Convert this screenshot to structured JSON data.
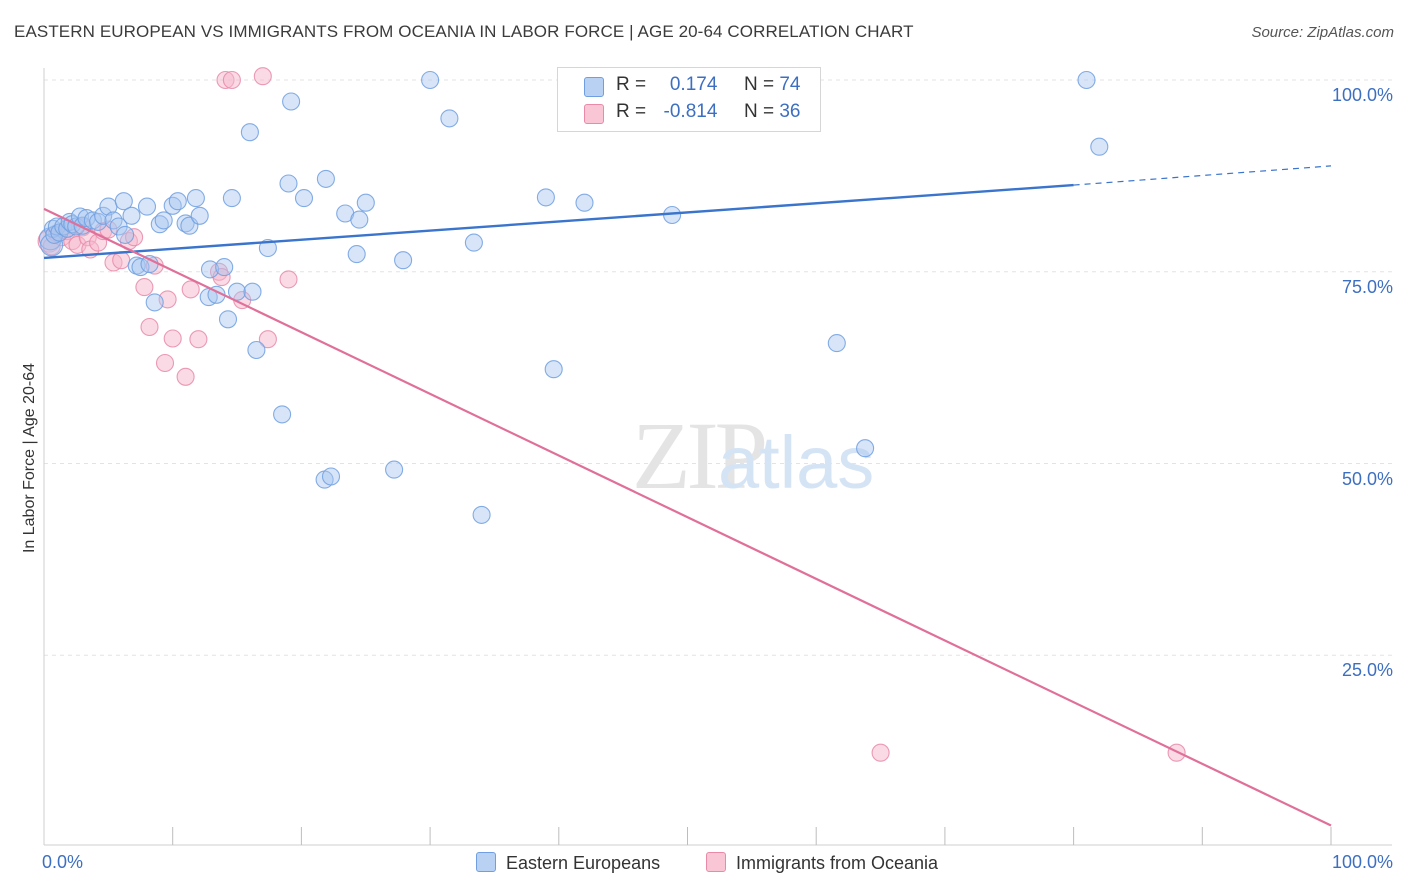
{
  "title": "EASTERN EUROPEAN VS IMMIGRANTS FROM OCEANIA IN LABOR FORCE | AGE 20-64 CORRELATION CHART",
  "source": "Source: ZipAtlas.com",
  "watermark": {
    "zip": "ZIP",
    "atlas": "atlas"
  },
  "legend": {
    "r_label": "R =",
    "n_label": "N =",
    "series1": {
      "r": "0.174",
      "n": "74"
    },
    "series2": {
      "r": "-0.814",
      "n": "36"
    }
  },
  "chart_data": {
    "type": "scatter",
    "title": "EASTERN EUROPEAN VS IMMIGRANTS FROM OCEANIA IN LABOR FORCE | AGE 20-64 CORRELATION CHART",
    "xlabel": "",
    "ylabel": "In Labor Force | Age 20-64",
    "xlim": [
      0,
      100
    ],
    "ylim": [
      0,
      100
    ],
    "x_tick_labels": [
      "0.0%",
      "100.0%"
    ],
    "y_ticks": [
      {
        "value": 100,
        "label": "100.0%"
      },
      {
        "value": 75,
        "label": "75.0%"
      },
      {
        "value": 50,
        "label": "50.0%"
      },
      {
        "value": 25,
        "label": "25.0%"
      }
    ],
    "grid": true,
    "legend_position": "top-center",
    "series": [
      {
        "name": "Eastern Europeans",
        "color": "#6f9fe0",
        "fill": "#a9c6f0",
        "r": 0.174,
        "n": 74,
        "trend": {
          "x0": 0,
          "y0": 76.8,
          "x1": 80,
          "y1": 86.3,
          "dashed_to_x": 100,
          "dashed_to_y": 88.8
        },
        "points": [
          [
            0.5,
            79.3
          ],
          [
            0.6,
            78.5
          ],
          [
            0.7,
            80.6
          ],
          [
            0.8,
            79.8
          ],
          [
            1.0,
            80.9
          ],
          [
            1.2,
            80.1
          ],
          [
            1.5,
            80.9
          ],
          [
            1.8,
            80.6
          ],
          [
            2.0,
            81.5
          ],
          [
            2.2,
            81.2
          ],
          [
            2.5,
            80.9
          ],
          [
            2.8,
            82.2
          ],
          [
            3.0,
            81.0
          ],
          [
            3.3,
            82.0
          ],
          [
            3.8,
            81.7
          ],
          [
            4.2,
            81.5
          ],
          [
            4.6,
            82.3
          ],
          [
            5.0,
            83.5
          ],
          [
            5.4,
            81.7
          ],
          [
            5.8,
            80.9
          ],
          [
            6.2,
            84.2
          ],
          [
            6.3,
            79.8
          ],
          [
            6.8,
            82.3
          ],
          [
            7.2,
            75.8
          ],
          [
            7.5,
            75.6
          ],
          [
            8.0,
            83.5
          ],
          [
            8.2,
            76.0
          ],
          [
            8.6,
            71.0
          ],
          [
            9.0,
            81.2
          ],
          [
            9.3,
            81.7
          ],
          [
            10.0,
            83.6
          ],
          [
            10.4,
            84.2
          ],
          [
            11.0,
            81.3
          ],
          [
            11.3,
            81.0
          ],
          [
            11.8,
            84.6
          ],
          [
            12.1,
            82.3
          ],
          [
            12.8,
            71.7
          ],
          [
            12.9,
            75.3
          ],
          [
            13.4,
            72.0
          ],
          [
            14.0,
            75.6
          ],
          [
            14.3,
            68.8
          ],
          [
            14.6,
            84.6
          ],
          [
            15.0,
            72.4
          ],
          [
            16.0,
            93.2
          ],
          [
            16.2,
            72.4
          ],
          [
            16.5,
            64.8
          ],
          [
            17.4,
            78.1
          ],
          [
            18.5,
            56.4
          ],
          [
            19.0,
            86.5
          ],
          [
            19.2,
            97.2
          ],
          [
            20.2,
            84.6
          ],
          [
            21.8,
            47.9
          ],
          [
            21.9,
            87.1
          ],
          [
            22.3,
            48.3
          ],
          [
            23.4,
            82.6
          ],
          [
            24.3,
            77.3
          ],
          [
            24.5,
            81.8
          ],
          [
            25.0,
            84.0
          ],
          [
            27.2,
            49.2
          ],
          [
            27.9,
            76.5
          ],
          [
            30.0,
            100.0
          ],
          [
            31.5,
            95.0
          ],
          [
            33.4,
            78.8
          ],
          [
            34.0,
            43.3
          ],
          [
            39.0,
            84.7
          ],
          [
            39.6,
            62.3
          ],
          [
            42.0,
            84.0
          ],
          [
            48.0,
            100.0
          ],
          [
            48.5,
            95.0
          ],
          [
            48.8,
            82.4
          ],
          [
            61.6,
            65.7
          ],
          [
            63.8,
            52.0
          ],
          [
            81.0,
            100.0
          ],
          [
            82.0,
            91.3
          ]
        ]
      },
      {
        "name": "Immigrants from Oceania",
        "color": "#e88aa8",
        "fill": "#f5b8cb",
        "r": -0.814,
        "n": 36,
        "trend": {
          "x0": 0,
          "y0": 83.2,
          "x1": 100,
          "y1": 2.8
        },
        "points": [
          [
            0.4,
            79.0
          ],
          [
            0.6,
            78.3
          ],
          [
            1.0,
            80.0
          ],
          [
            1.4,
            79.5
          ],
          [
            1.8,
            80.3
          ],
          [
            2.2,
            79.0
          ],
          [
            2.6,
            78.5
          ],
          [
            3.0,
            80.8
          ],
          [
            3.4,
            79.5
          ],
          [
            3.6,
            77.9
          ],
          [
            4.2,
            78.8
          ],
          [
            4.6,
            80.3
          ],
          [
            5.0,
            80.5
          ],
          [
            5.4,
            76.2
          ],
          [
            6.0,
            76.5
          ],
          [
            6.6,
            79.0
          ],
          [
            7.0,
            79.5
          ],
          [
            7.8,
            73.0
          ],
          [
            8.2,
            67.8
          ],
          [
            8.6,
            75.8
          ],
          [
            9.4,
            63.1
          ],
          [
            9.6,
            71.4
          ],
          [
            10.0,
            66.3
          ],
          [
            11.0,
            61.3
          ],
          [
            11.4,
            72.7
          ],
          [
            12.0,
            66.2
          ],
          [
            13.6,
            75.0
          ],
          [
            13.8,
            74.3
          ],
          [
            14.1,
            100.0
          ],
          [
            14.6,
            100.0
          ],
          [
            15.4,
            71.3
          ],
          [
            17.0,
            100.5
          ],
          [
            17.4,
            66.2
          ],
          [
            19.0,
            74.0
          ],
          [
            65.0,
            12.3
          ],
          [
            88.0,
            12.3
          ]
        ]
      }
    ]
  }
}
